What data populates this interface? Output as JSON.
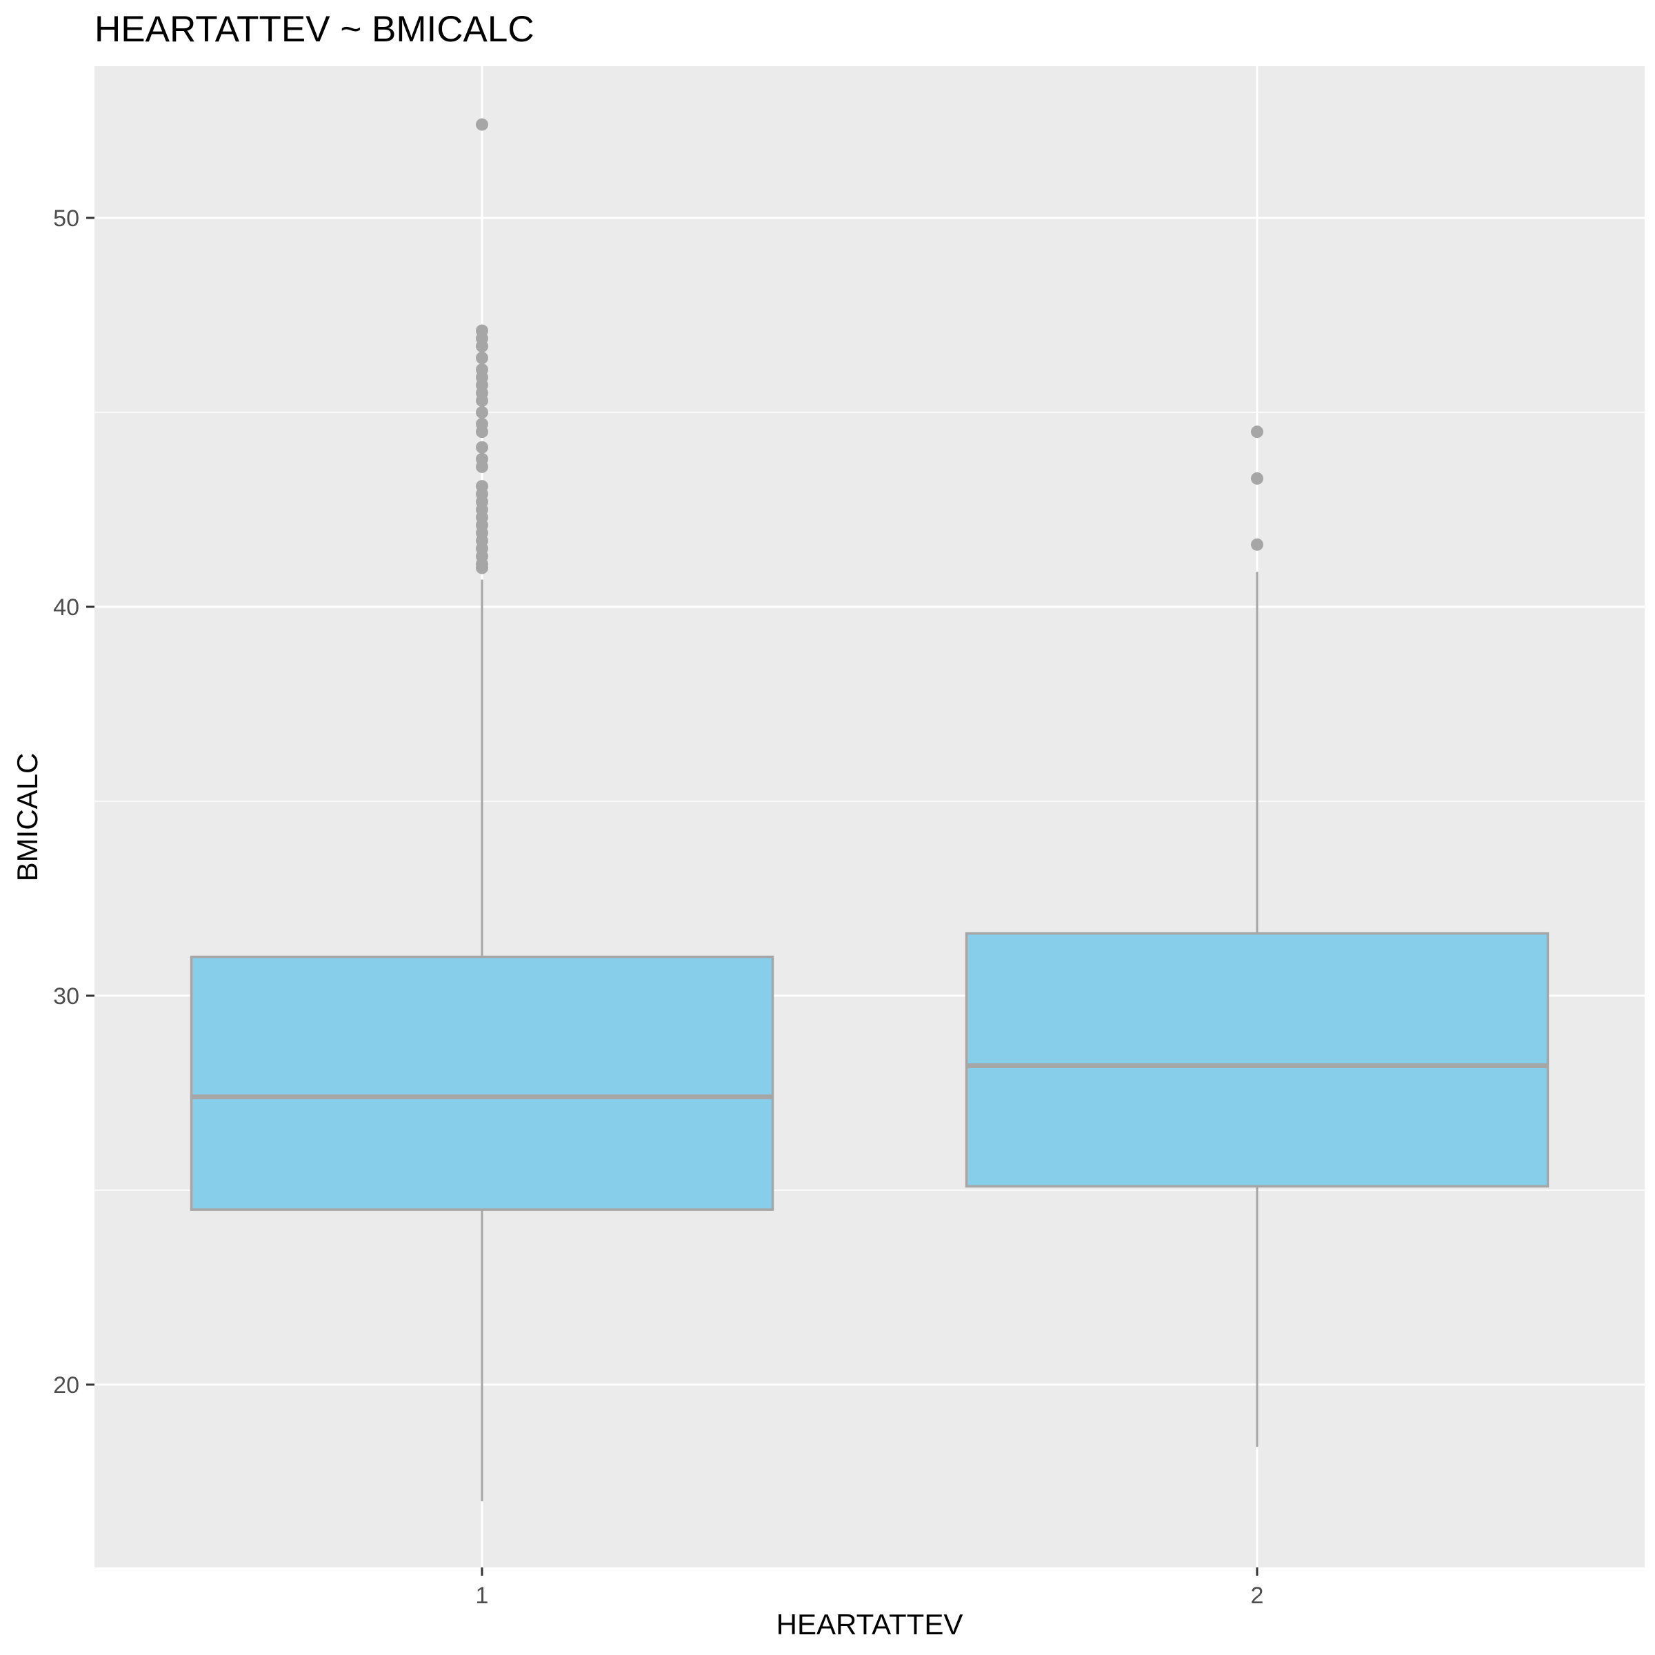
{
  "chart_data": {
    "type": "boxplot",
    "title": "HEARTATTEV ~ BMICALC",
    "xlabel": "HEARTATTEV",
    "ylabel": "BMICALC",
    "categories": [
      "1",
      "2"
    ],
    "ylim": [
      15.3,
      53.9
    ],
    "yticks": [
      20,
      30,
      40,
      50
    ],
    "grid": true,
    "colors": {
      "panel_background": "#EBEBEB",
      "grid": "#FFFFFF",
      "box_fill": "#87CEEB",
      "box_outline": "#A6A6A6",
      "outlier": "#A6A6A6",
      "tick_label": "#4D4D4D"
    },
    "boxes": [
      {
        "category": "1",
        "whisker_low": 17.0,
        "q1": 24.5,
        "median": 27.4,
        "q3": 31.0,
        "whisker_high": 40.7,
        "outliers": [
          41.0,
          41.1,
          41.3,
          41.5,
          41.7,
          41.9,
          42.1,
          42.3,
          42.5,
          42.7,
          42.9,
          43.1,
          43.6,
          43.8,
          44.1,
          44.5,
          44.7,
          45.0,
          45.3,
          45.5,
          45.7,
          45.9,
          46.1,
          46.4,
          46.7,
          46.9,
          47.1,
          52.4
        ]
      },
      {
        "category": "2",
        "whisker_low": 18.4,
        "q1": 25.1,
        "median": 28.2,
        "q3": 31.6,
        "whisker_high": 40.9,
        "outliers": [
          41.6,
          43.3,
          44.5
        ]
      }
    ]
  }
}
